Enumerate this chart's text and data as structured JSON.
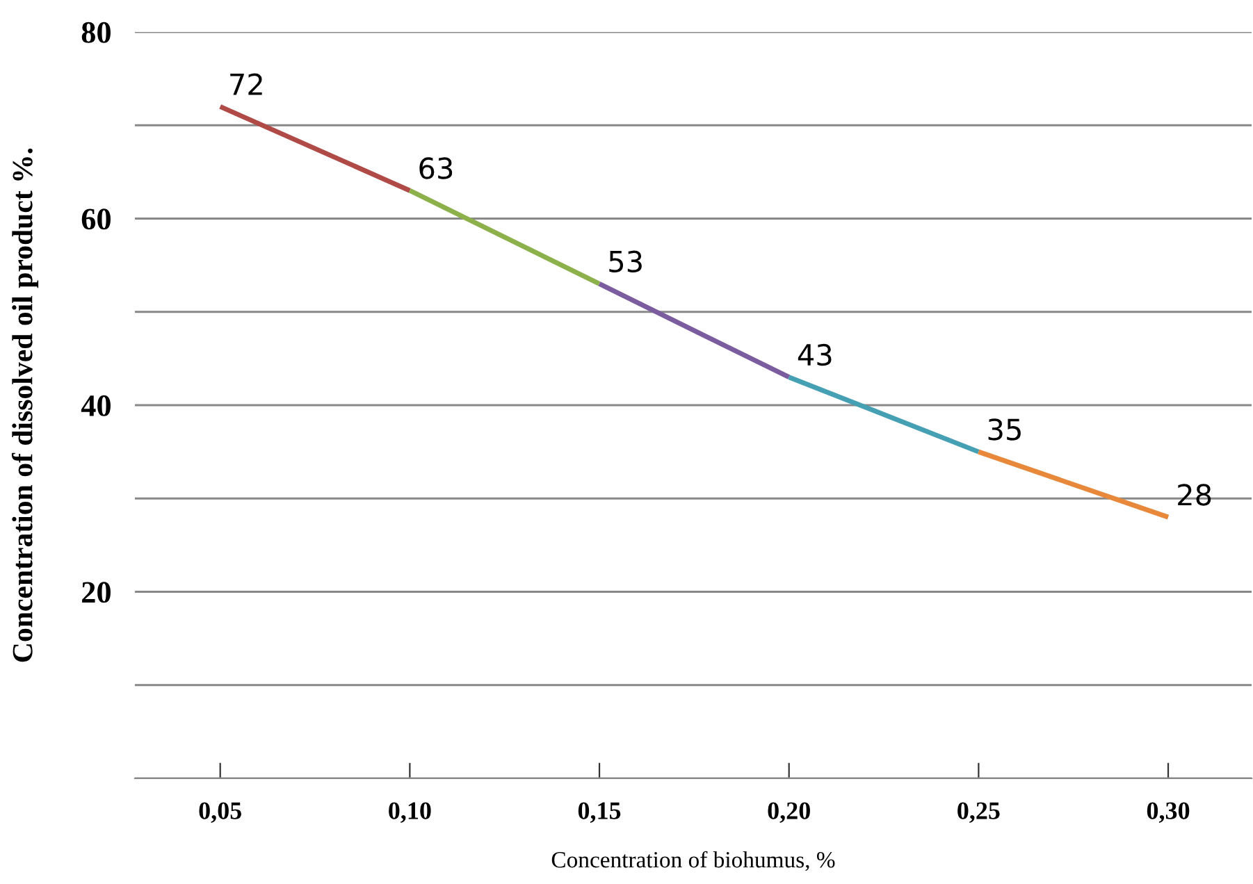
{
  "chart_data": {
    "type": "line",
    "xlabel": "Concentration of biohumus, %",
    "ylabel": "Concentration of dissolved oil product %.",
    "xlim": [
      0.0275,
      0.322
    ],
    "xticks": [
      {
        "value": 0.05,
        "label": "0,05"
      },
      {
        "value": 0.1,
        "label": "0,10"
      },
      {
        "value": 0.15,
        "label": "0,15"
      },
      {
        "value": 0.2,
        "label": "0,20"
      },
      {
        "value": 0.25,
        "label": "0,25"
      },
      {
        "value": 0.3,
        "label": "0,30"
      }
    ],
    "ylim": [
      0,
      80
    ],
    "yticks": [
      {
        "value": 0,
        "label": null
      },
      {
        "value": 10,
        "label": null
      },
      20,
      {
        "value": 30,
        "label": null
      },
      40,
      {
        "value": 50,
        "label": null
      },
      60,
      {
        "value": 70,
        "label": null
      },
      80
    ],
    "grid": "y",
    "marker": "none",
    "series": [
      {
        "color": "#b04a46",
        "x": [
          0.05,
          0.1
        ],
        "values": [
          72,
          63
        ],
        "value_labels": [
          "72",
          "63"
        ]
      },
      {
        "color": "#8cb04a",
        "x": [
          0.1,
          0.15
        ],
        "values": [
          63,
          53
        ],
        "value_labels": [
          null,
          "53"
        ]
      },
      {
        "color": "#7b5c9e",
        "x": [
          0.15,
          0.2
        ],
        "values": [
          53,
          43
        ],
        "value_labels": [
          null,
          "43"
        ]
      },
      {
        "color": "#46a0b4",
        "x": [
          0.2,
          0.25
        ],
        "values": [
          43,
          35
        ],
        "value_labels": [
          null,
          "35"
        ]
      },
      {
        "color": "#e8883a",
        "x": [
          0.25,
          0.3
        ],
        "values": [
          35,
          28
        ],
        "value_labels": [
          null,
          "28"
        ]
      }
    ]
  }
}
